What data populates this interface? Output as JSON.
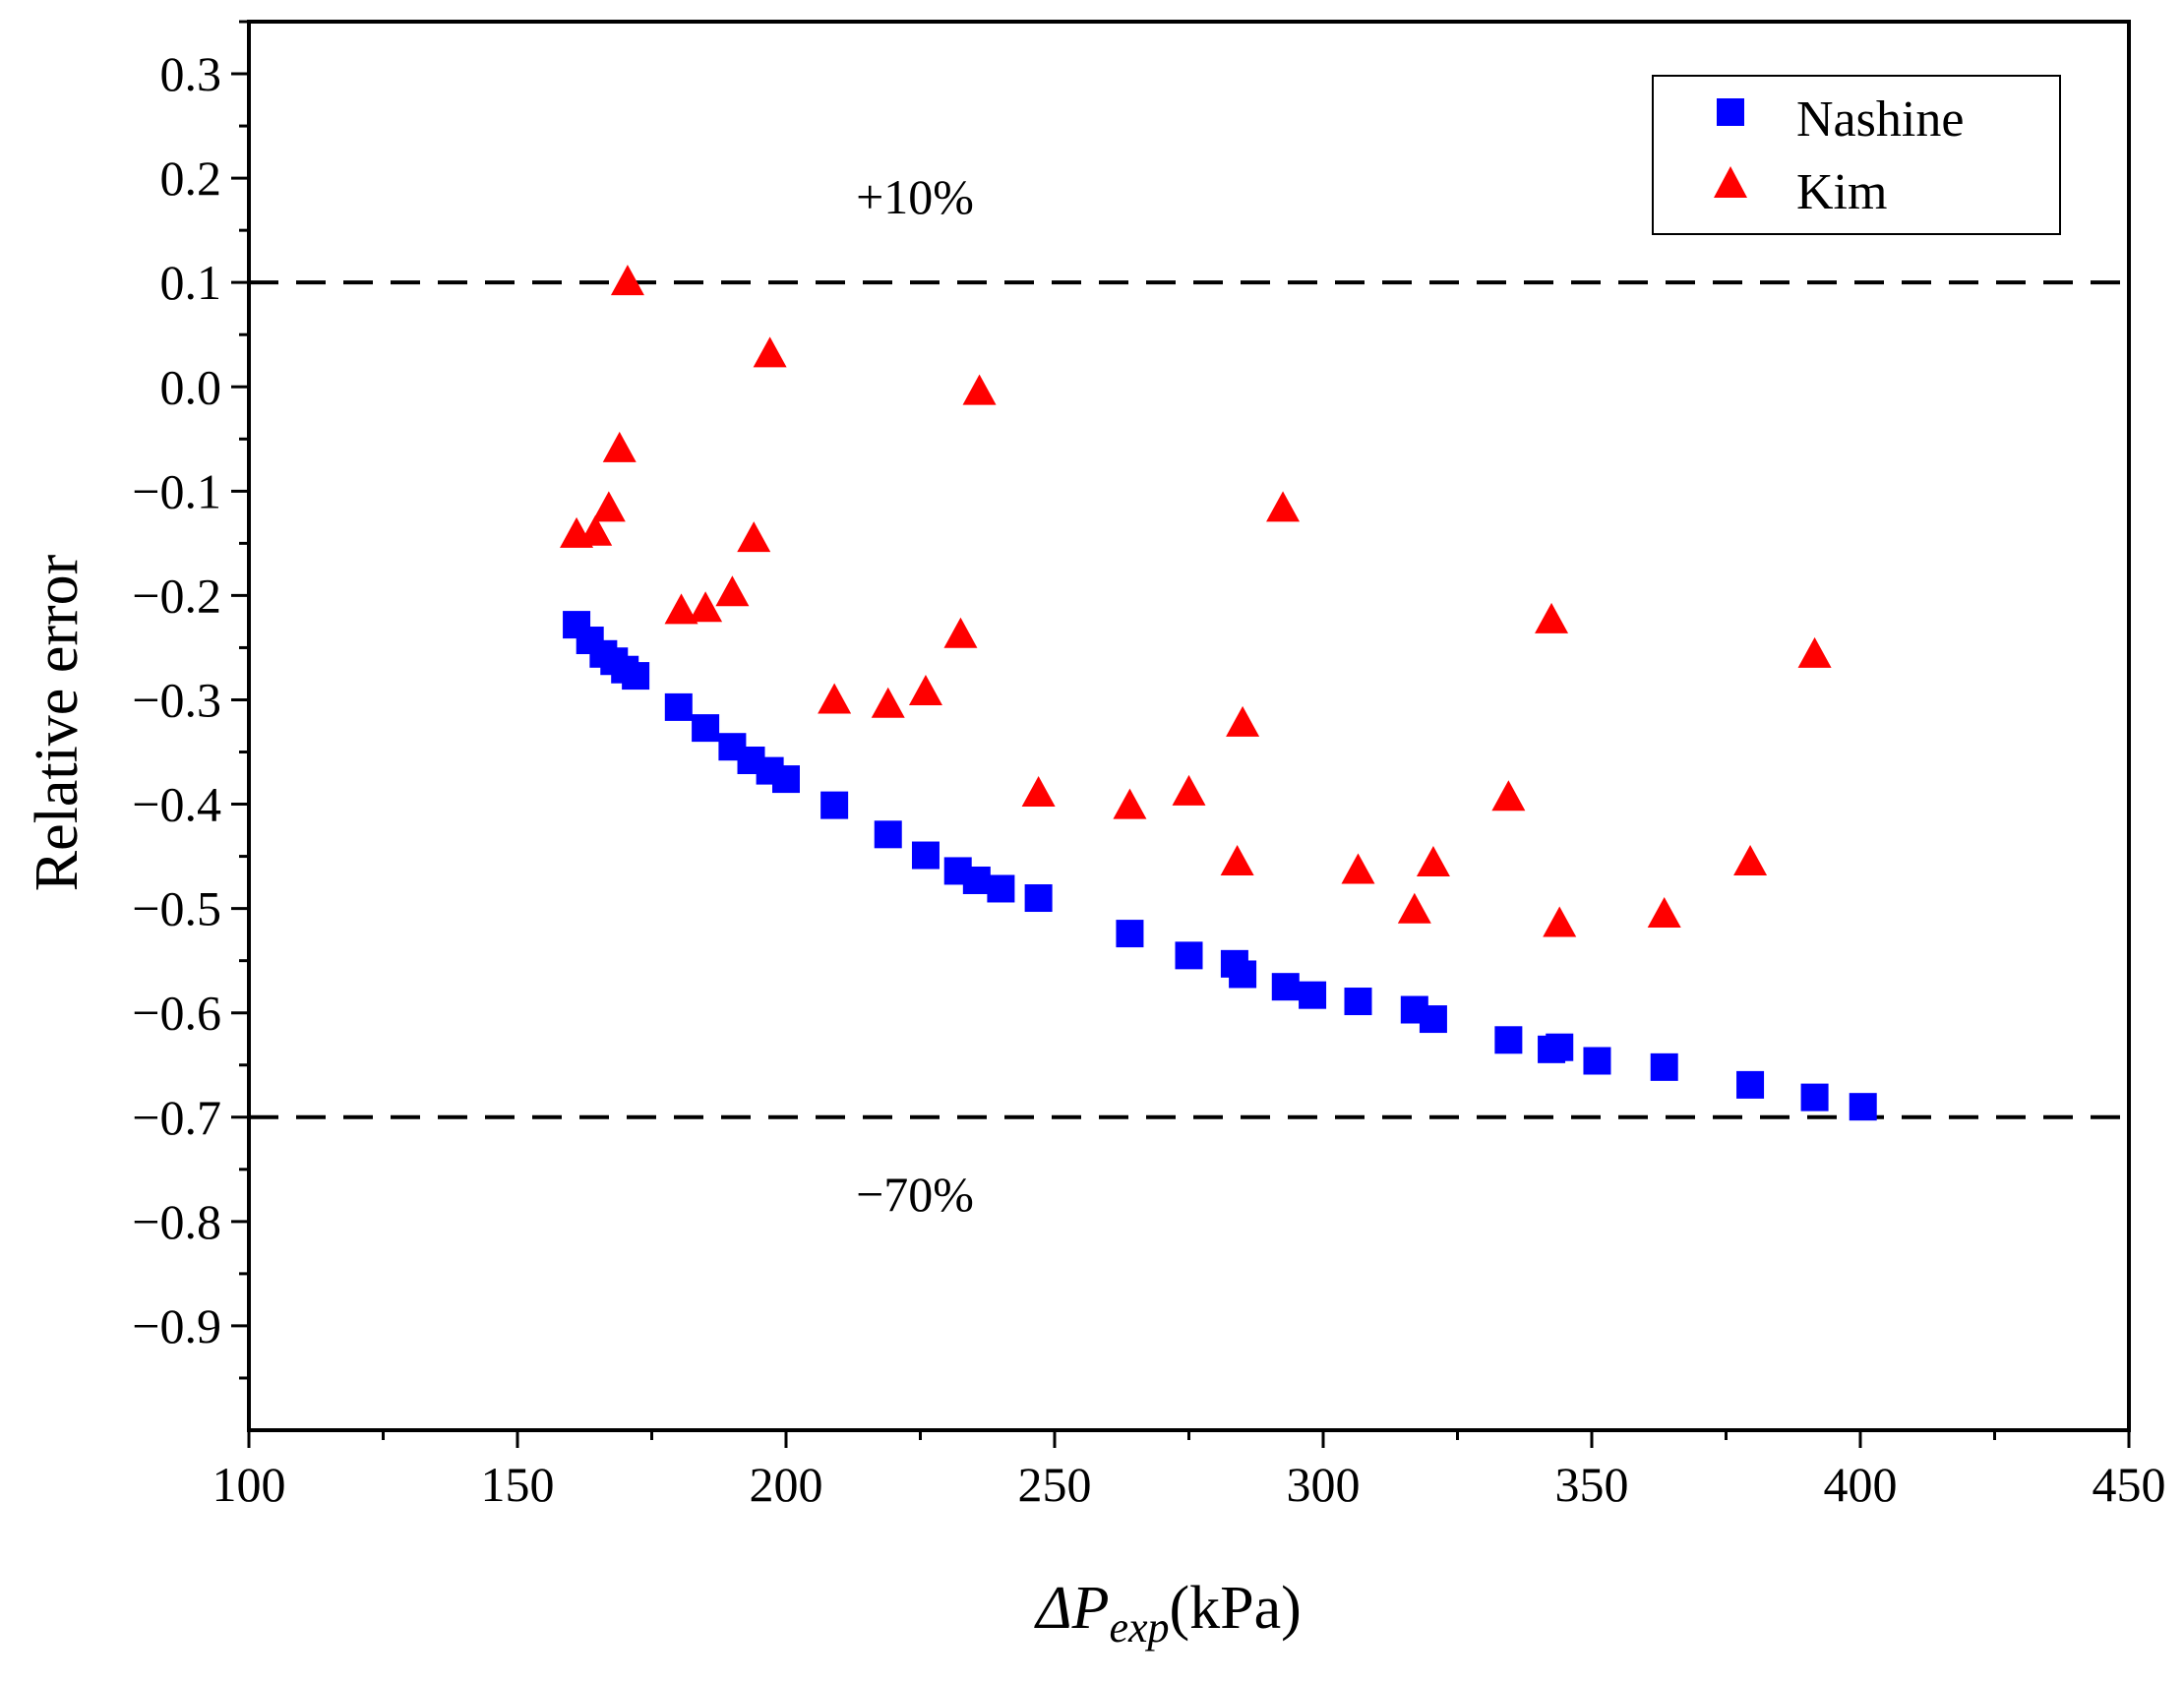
{
  "chart_data": {
    "type": "scatter",
    "xlabel": {
      "prefix": "ΔP",
      "subscript": "exp",
      "suffix": "(kPa)"
    },
    "ylabel": "Relative error",
    "xlim": [
      100,
      450
    ],
    "ylim": [
      -1.0,
      0.35
    ],
    "x_ticks": [
      "100",
      "150",
      "200",
      "250",
      "300",
      "350",
      "400",
      "450"
    ],
    "y_ticks": [
      "0.3",
      "0.2",
      "0.1",
      "0.0",
      "−0.1",
      "−0.2",
      "−0.3",
      "−0.4",
      "−0.5",
      "−0.6",
      "−0.7",
      "−0.8",
      "−0.9"
    ],
    "grid": false,
    "legend_position": "top-right",
    "reference_lines": [
      {
        "y": 0.1,
        "label": "+10%",
        "style": "dashed"
      },
      {
        "y": -0.7,
        "label": "−70%",
        "style": "dashed"
      }
    ],
    "series": [
      {
        "name": "Nashine",
        "marker": "square",
        "color": "#0000ff",
        "points": [
          [
            161,
            -0.228
          ],
          [
            163.5,
            -0.243
          ],
          [
            166,
            -0.256
          ],
          [
            168,
            -0.263
          ],
          [
            170,
            -0.271
          ],
          [
            172,
            -0.277
          ],
          [
            180,
            -0.307
          ],
          [
            185,
            -0.327
          ],
          [
            190,
            -0.345
          ],
          [
            193.5,
            -0.358
          ],
          [
            197,
            -0.368
          ],
          [
            200,
            -0.376
          ],
          [
            209,
            -0.401
          ],
          [
            219,
            -0.429
          ],
          [
            226,
            -0.449
          ],
          [
            232,
            -0.464
          ],
          [
            235.5,
            -0.473
          ],
          [
            240,
            -0.481
          ],
          [
            247,
            -0.49
          ],
          [
            264,
            -0.524
          ],
          [
            275,
            -0.545
          ],
          [
            283.5,
            -0.553
          ],
          [
            285,
            -0.563
          ],
          [
            293,
            -0.575
          ],
          [
            298,
            -0.583
          ],
          [
            306.5,
            -0.589
          ],
          [
            317,
            -0.597
          ],
          [
            320.5,
            -0.606
          ],
          [
            334.5,
            -0.626
          ],
          [
            342.5,
            -0.635
          ],
          [
            344,
            -0.633
          ],
          [
            351,
            -0.646
          ],
          [
            363.5,
            -0.652
          ],
          [
            379.5,
            -0.669
          ],
          [
            391.5,
            -0.681
          ],
          [
            400.5,
            -0.69
          ]
        ]
      },
      {
        "name": "Kim",
        "marker": "triangle",
        "color": "#ff0000",
        "points": [
          [
            161,
            -0.142
          ],
          [
            164.5,
            -0.14
          ],
          [
            167,
            -0.117
          ],
          [
            169,
            -0.06
          ],
          [
            170.5,
            0.1
          ],
          [
            180.5,
            -0.215
          ],
          [
            185,
            -0.213
          ],
          [
            190,
            -0.198
          ],
          [
            194,
            -0.146
          ],
          [
            197,
            0.031
          ],
          [
            209,
            -0.301
          ],
          [
            219,
            -0.305
          ],
          [
            226,
            -0.293
          ],
          [
            232.5,
            -0.238
          ],
          [
            236,
            -0.005
          ],
          [
            247,
            -0.39
          ],
          [
            264,
            -0.402
          ],
          [
            275,
            -0.389
          ],
          [
            284,
            -0.456
          ],
          [
            285,
            -0.323
          ],
          [
            292.5,
            -0.117
          ],
          [
            306.5,
            -0.464
          ],
          [
            317,
            -0.502
          ],
          [
            320.5,
            -0.457
          ],
          [
            334.5,
            -0.394
          ],
          [
            342.5,
            -0.224
          ],
          [
            344,
            -0.515
          ],
          [
            363.5,
            -0.506
          ],
          [
            379.5,
            -0.456
          ],
          [
            391.5,
            -0.257
          ]
        ]
      }
    ]
  }
}
